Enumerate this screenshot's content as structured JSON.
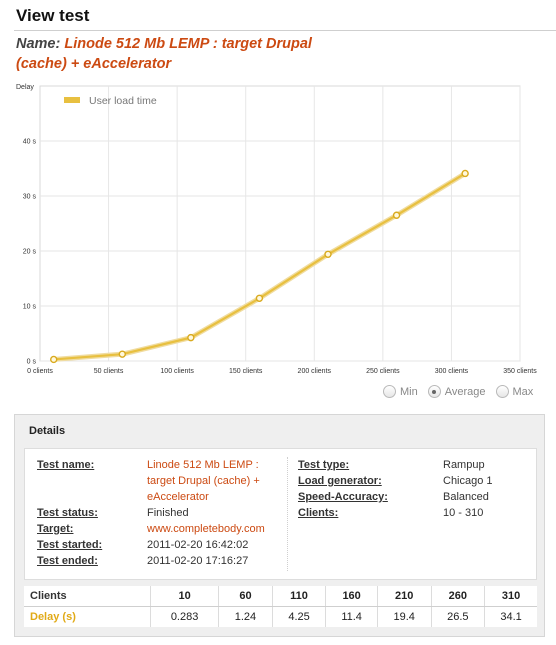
{
  "page": {
    "title": "View test"
  },
  "heading": {
    "prefix": "Name:",
    "test_name": "Linode 512 Mb LEMP : target Drupal (cache) + eAccelerator"
  },
  "chart_data": {
    "type": "line",
    "xlabel": "",
    "ylabel": "Delay",
    "x_tick_labels": [
      "0 clients",
      "50 clients",
      "100 clients",
      "150 clients",
      "200 clients",
      "250 clients",
      "300 clients",
      "350 clients"
    ],
    "x_ticks": [
      0,
      50,
      100,
      150,
      200,
      250,
      300,
      350
    ],
    "y_tick_labels": [
      "0 s",
      "10 s",
      "20 s",
      "30 s",
      "40 s"
    ],
    "y_ticks": [
      0,
      10,
      20,
      30,
      40
    ],
    "xlim": [
      0,
      350
    ],
    "ylim": [
      0,
      50
    ],
    "grid": true,
    "legend": "top-left",
    "series": [
      {
        "name": "User load time",
        "color": "#e8c040",
        "x": [
          10,
          60,
          110,
          160,
          210,
          260,
          310
        ],
        "y": [
          0.283,
          1.24,
          4.25,
          11.4,
          19.4,
          26.5,
          34.1
        ]
      }
    ]
  },
  "view_options": {
    "min_label": "Min",
    "average_label": "Average",
    "max_label": "Max",
    "selected": "Average"
  },
  "details": {
    "heading": "Details",
    "left": {
      "test_name_label": "Test name:",
      "test_name_value": "Linode 512 Mb LEMP : target Drupal (cache) + eAccelerator",
      "test_status_label": "Test status:",
      "test_status_value": "Finished",
      "target_label": "Target:",
      "target_value": "www.completebody.com",
      "test_started_label": "Test started:",
      "test_started_value": "2011-02-20 16:42:02",
      "test_ended_label": "Test ended:",
      "test_ended_value": "2011-02-20 17:16:27"
    },
    "right": {
      "test_type_label": "Test type:",
      "test_type_value": "Rampup",
      "load_generator_label": "Load generator:",
      "load_generator_value": "Chicago 1",
      "speed_accuracy_label": "Speed-Accuracy:",
      "speed_accuracy_value": "Balanced",
      "clients_label": "Clients:",
      "clients_value": "10 - 310"
    }
  },
  "results": {
    "clients_label": "Clients",
    "delay_label": "Delay (s)",
    "clients": [
      "10",
      "60",
      "110",
      "160",
      "210",
      "260",
      "310"
    ],
    "delays": [
      "0.283",
      "1.24",
      "4.25",
      "11.4",
      "19.4",
      "26.5",
      "34.1"
    ]
  }
}
